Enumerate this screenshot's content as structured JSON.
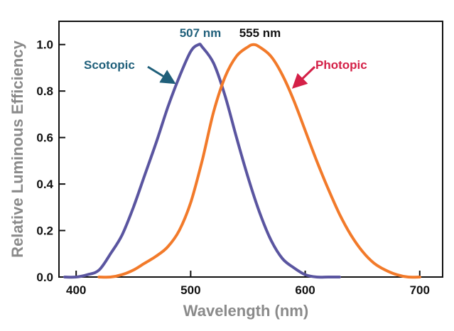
{
  "chart_data": {
    "type": "line",
    "title": "",
    "xlabel": "Wavelength (nm)",
    "ylabel": "Relative Luminous Efficiency",
    "xlim": [
      385,
      720
    ],
    "ylim": [
      0,
      1.1
    ],
    "x_ticks": [
      400,
      500,
      600,
      700
    ],
    "x_tick_labels": [
      "400",
      "500",
      "600",
      "700"
    ],
    "y_ticks": [
      0,
      0.2,
      0.4,
      0.6,
      0.8,
      1.0
    ],
    "y_tick_labels": [
      "0.0",
      "0.2",
      "0.4",
      "0.6",
      "0.8",
      "1.0"
    ],
    "grid": false,
    "legend": "none",
    "series": [
      {
        "name": "Scotopic",
        "color": "#5a55a0",
        "x": [
          390,
          400,
          410,
          420,
          430,
          440,
          450,
          460,
          470,
          480,
          490,
          500,
          507,
          510,
          520,
          530,
          540,
          550,
          560,
          570,
          580,
          590,
          600,
          610,
          620,
          630
        ],
        "y": [
          0.0,
          0.0,
          0.01,
          0.03,
          0.1,
          0.18,
          0.3,
          0.44,
          0.58,
          0.73,
          0.86,
          0.97,
          1.0,
          0.99,
          0.92,
          0.78,
          0.6,
          0.43,
          0.28,
          0.16,
          0.08,
          0.04,
          0.01,
          0.0,
          0.0,
          0.0
        ]
      },
      {
        "name": "Photopic",
        "color": "#f27a2a",
        "x": [
          420,
          430,
          440,
          450,
          460,
          470,
          480,
          490,
          500,
          510,
          520,
          530,
          540,
          550,
          555,
          560,
          570,
          580,
          590,
          600,
          610,
          620,
          630,
          640,
          650,
          660,
          670,
          680,
          690,
          700
        ],
        "y": [
          0.0,
          0.0,
          0.01,
          0.03,
          0.06,
          0.09,
          0.13,
          0.2,
          0.32,
          0.5,
          0.71,
          0.86,
          0.95,
          0.99,
          1.0,
          0.99,
          0.95,
          0.87,
          0.76,
          0.63,
          0.5,
          0.38,
          0.27,
          0.18,
          0.11,
          0.06,
          0.03,
          0.01,
          0.0,
          0.0
        ]
      }
    ],
    "annotations": [
      {
        "text": "507 nm",
        "color": "#1f5f7a",
        "x": 507,
        "y": 1.0
      },
      {
        "text": "555 nm",
        "color": "#111111",
        "x": 555,
        "y": 1.0
      },
      {
        "text": "Scotopic",
        "color": "#1f5f7a",
        "arrow_to": [
          490,
          0.84
        ]
      },
      {
        "text": "Photopic",
        "color": "#d42047",
        "arrow_to": [
          588,
          0.82
        ]
      }
    ]
  }
}
